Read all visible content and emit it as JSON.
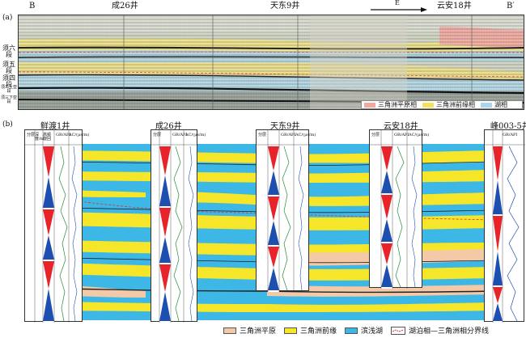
{
  "panel_a": {
    "label": "(a)",
    "left_end": "B",
    "right_end": "B′",
    "wells": [
      "成26井",
      "天东9井",
      "云安18井"
    ],
    "direction": "E",
    "formations": [
      "须六段",
      "须五段",
      "须四段",
      "须三上亚段",
      "须三下亚段"
    ],
    "legend": [
      "三角洲平原相",
      "三角洲前缘相",
      "湖相"
    ],
    "colors": {
      "plain": "#f2a7a0",
      "front": "#f5e15a",
      "lake": "#a9d6ef"
    }
  },
  "panel_b": {
    "label": "(b)",
    "wells": [
      "鲜渡1井",
      "成26井",
      "天东9井",
      "云安18井",
      "峰003-5井"
    ],
    "col_headers": {
      "fm": "分层",
      "depth": "深度/m",
      "cycle": "高频旋回",
      "gr": "GR/API",
      "ac": "AC/(μs/m)"
    },
    "gr_scale": [
      "0",
      "150"
    ],
    "ac_scale": [
      "90",
      "40"
    ],
    "legend": [
      "三角洲平原",
      "三角洲前缘",
      "滨浅湖",
      "湖泊相—三角洲相分界线"
    ],
    "colors": {
      "plain": "#f3c9a8",
      "front": "#f5e62a",
      "lake": "#3cb7e6",
      "cycle_red": "#e8232a",
      "cycle_blue": "#1d4fb0"
    }
  }
}
